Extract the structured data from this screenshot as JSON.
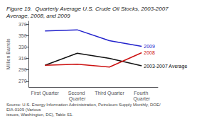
{
  "chart_data": {
    "type": "line",
    "title": "Figure 19.  Quarterly Average U.S. Crude Oil Stocks, 2003-2007 Average, 2008, and 2009",
    "categories": [
      "First Quarter",
      "Second Quarter",
      "Third Quarter",
      "Fourth Quarter"
    ],
    "series": [
      {
        "name": "2009",
        "color": "#2222cc",
        "values": [
          358,
          360,
          341,
          331
        ]
      },
      {
        "name": "2003-2007 Average",
        "color": "#111111",
        "values": [
          298,
          319,
          310,
          297
        ]
      },
      {
        "name": "2008",
        "color": "#cc1111",
        "values": [
          298,
          300,
          295,
          320
        ]
      }
    ],
    "ylabel": "Million Barrels",
    "ylim": [
      260,
      375
    ],
    "yticks": [
      270,
      290,
      310,
      330,
      350,
      370
    ],
    "grid": false,
    "annotations": [
      "Source: U.S. Energy Information Administration, Petroleum Supply Monthly, DOE/EIA-0109 (Various\nissues, Washington, DC), Table S1."
    ]
  }
}
